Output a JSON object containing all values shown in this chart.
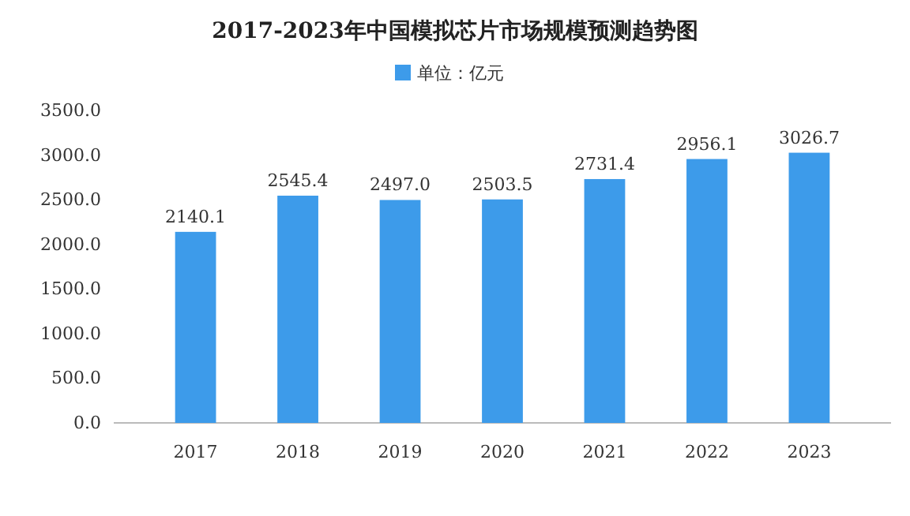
{
  "chart_data": {
    "type": "bar",
    "title": "2017-2023年中国模拟芯片市场规模预测趋势图",
    "categories": [
      "2017",
      "2018",
      "2019",
      "2020",
      "2021",
      "2022",
      "2023"
    ],
    "series": [
      {
        "name": "单位：亿元",
        "color": "#3d9bea",
        "values": [
          2140.1,
          2545.4,
          2497.0,
          2503.5,
          2731.4,
          2956.1,
          3026.7
        ],
        "value_labels": [
          "2140.1",
          "2545.4",
          "2497.0",
          "2503.5",
          "2731.4",
          "2956.1",
          "3026.7"
        ]
      }
    ],
    "ylim": [
      0,
      3500
    ],
    "yticks": [
      {
        "value": 0,
        "label": "0.0"
      },
      {
        "value": 500,
        "label": "500.0"
      },
      {
        "value": 1000,
        "label": "1000.0"
      },
      {
        "value": 1500,
        "label": "1500.0"
      },
      {
        "value": 2000,
        "label": "2000.0"
      },
      {
        "value": 2500,
        "label": "2500.0"
      },
      {
        "value": 3000,
        "label": "3000.0"
      },
      {
        "value": 3500,
        "label": "3500.0"
      }
    ],
    "grid": false,
    "legend": "top"
  }
}
